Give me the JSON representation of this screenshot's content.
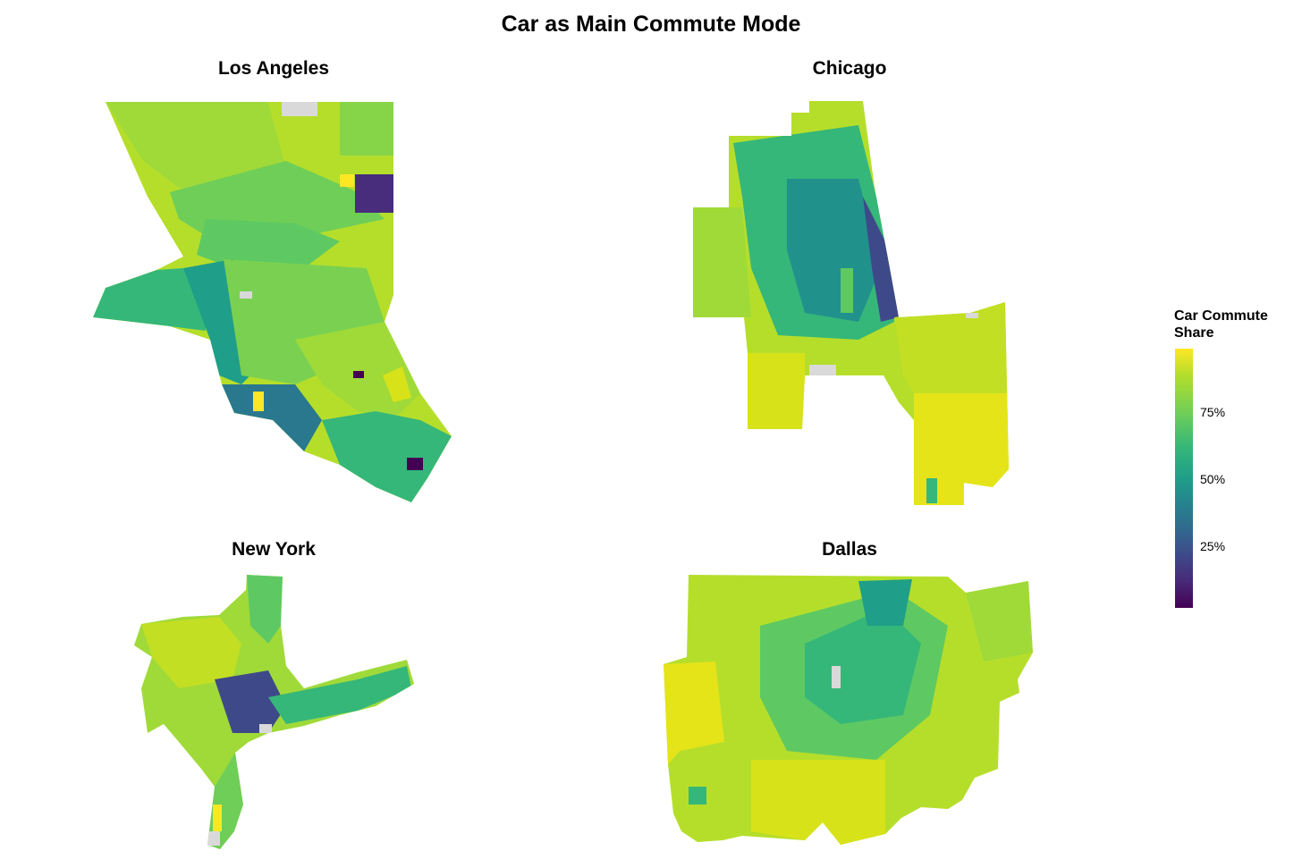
{
  "title": "Car as Main Commute Mode",
  "panels": {
    "la": "Los Angeles",
    "chicago": "Chicago",
    "ny": "New York",
    "dallas": "Dallas"
  },
  "legend": {
    "title_line1": "Car Commute",
    "title_line2": "Share",
    "ticks": [
      "75%",
      "50%",
      "25%"
    ]
  },
  "colors": {
    "viridis_low": "#440154",
    "viridis_mid": "#21918c",
    "viridis_high": "#fde725",
    "missing": "#d9d9d9"
  }
}
